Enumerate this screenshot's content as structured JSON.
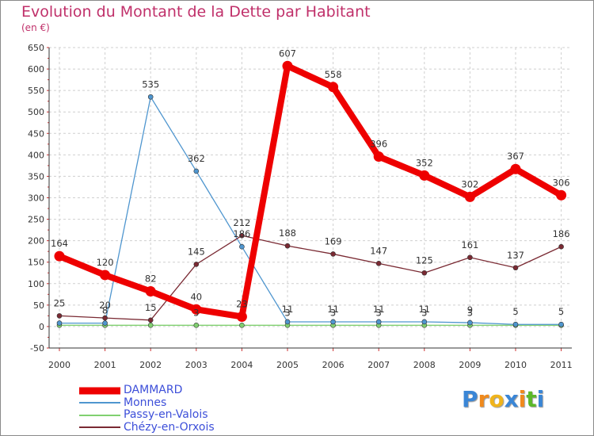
{
  "chart_data": {
    "type": "line",
    "title": "Evolution du Montant de la Dette par Habitant",
    "subtitle": "(en €)",
    "x": [
      "2000",
      "2001",
      "2002",
      "2003",
      "2004",
      "2005",
      "2006",
      "2007",
      "2008",
      "2009",
      "2010",
      "2011"
    ],
    "ylim": [
      -50,
      650
    ],
    "yticks": [
      -50,
      0,
      50,
      100,
      150,
      200,
      250,
      300,
      350,
      400,
      450,
      500,
      550,
      600,
      650
    ],
    "ytick_labels": [
      "-50",
      "0",
      "50",
      "100",
      "150",
      "200",
      "250",
      "300",
      "350",
      "400",
      "450",
      "500",
      "550",
      "600",
      "650"
    ],
    "grid": true,
    "legend_position": "bottom-left",
    "series": [
      {
        "name": "DAMMARD",
        "color": "#ee0000",
        "values": [
          164,
          120,
          82,
          40,
          23,
          607,
          558,
          396,
          352,
          302,
          367,
          306
        ],
        "labels": [
          "164",
          "120",
          "82",
          "40",
          "23",
          "607",
          "558",
          "396",
          "352",
          "302",
          "367",
          "306"
        ]
      },
      {
        "name": "Monnes",
        "color": "#4f96cf",
        "values": [
          8,
          8,
          535,
          362,
          186,
          11,
          11,
          11,
          11,
          9,
          5,
          5
        ],
        "labels": [
          "",
          "8",
          "535",
          "362",
          "186",
          "11",
          "11",
          "11",
          "11",
          "9",
          "5",
          "5"
        ]
      },
      {
        "name": "Passy-en-Valois",
        "color": "#80d070",
        "values": [
          3,
          3,
          3,
          3,
          3,
          3,
          3,
          3,
          3,
          3,
          3,
          3
        ],
        "labels": [
          "",
          "",
          "",
          "3",
          "",
          "3",
          "3",
          "3",
          "3",
          "3",
          "",
          ""
        ]
      },
      {
        "name": "Chézy-en-Orxois",
        "color": "#7a2a33",
        "values": [
          25,
          20,
          15,
          145,
          212,
          188,
          169,
          147,
          125,
          161,
          137,
          186
        ],
        "labels": [
          "25",
          "20",
          "15",
          "145",
          "212",
          "188",
          "169",
          "147",
          "125",
          "161",
          "137",
          "186"
        ]
      }
    ]
  },
  "legend": {
    "items": [
      {
        "label": "DAMMARD",
        "color": "#ee0000"
      },
      {
        "label": "Monnes",
        "color": "#4f96cf"
      },
      {
        "label": "Passy-en-Valois",
        "color": "#80d070"
      },
      {
        "label": "Chézy-en-Orxois",
        "color": "#7a2a33"
      }
    ]
  },
  "logo": {
    "letters": [
      "P",
      "r",
      "o",
      "x",
      "i",
      "t",
      "i"
    ],
    "colors": [
      "#3a86d6",
      "#f08a1c",
      "#f0b41c",
      "#3a86d6",
      "#f08a1c",
      "#5cb82a",
      "#3a86d6"
    ]
  }
}
